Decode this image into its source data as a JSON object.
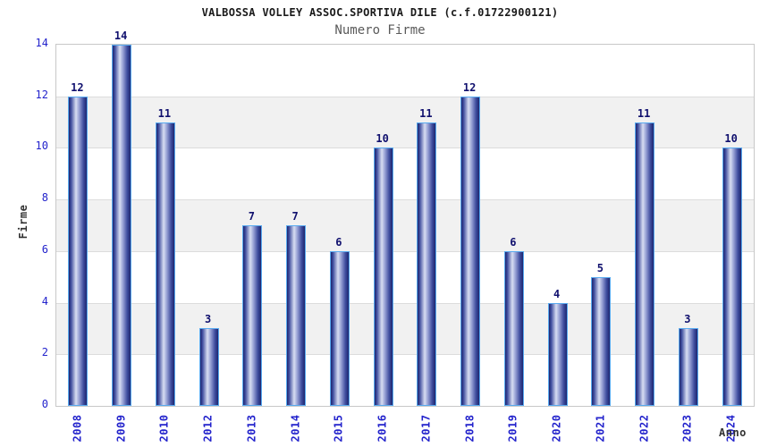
{
  "chart_data": {
    "type": "bar",
    "title": "VALBOSSA VOLLEY ASSOC.SPORTIVA DILE (c.f.01722900121)",
    "subtitle": "Numero Firme",
    "xlabel": "Anno",
    "ylabel": "Firme",
    "categories": [
      "2008",
      "2009",
      "2010",
      "2012",
      "2013",
      "2014",
      "2015",
      "2016",
      "2017",
      "2018",
      "2019",
      "2020",
      "2021",
      "2022",
      "2023",
      "2024"
    ],
    "values": [
      12,
      14,
      11,
      3,
      7,
      7,
      6,
      10,
      11,
      12,
      6,
      4,
      5,
      11,
      3,
      10
    ],
    "ylim": [
      0,
      14
    ],
    "ytick_step": 2,
    "grid": true,
    "legend": "none",
    "colors": {
      "bar_edge_dark": "#1e266e",
      "bar_mid": "#3e4c9e",
      "bar_highlight": "#d8def2",
      "bar_mid_light": "#96a0d4",
      "bar_border": "#58aaf0",
      "tick_label": "#2323cc",
      "value_label": "#10106e",
      "axis_label": "#333333",
      "band_gray": "#f1f1f1",
      "gridline": "#dcdcdc",
      "plot_border": "#c8c8c8",
      "title_text": "#1a1a1a",
      "subtitle_text": "#5a5a5a"
    }
  }
}
